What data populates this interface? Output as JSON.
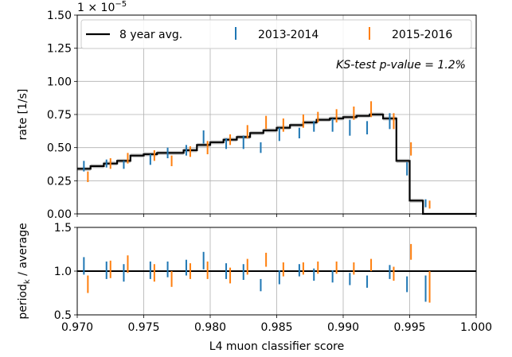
{
  "chart_data": [
    {
      "type": "step",
      "title": "",
      "xlabel": "L4 muon classifier score",
      "ylabel": "rate [1/s]",
      "y_multiplier_label": "1 × 10",
      "y_multiplier_exponent": "−5",
      "xlim": [
        0.97,
        1.0
      ],
      "ylim": [
        0.0,
        1.5
      ],
      "x_ticks": [
        0.97,
        0.975,
        0.98,
        0.985,
        0.99,
        0.995,
        1.0
      ],
      "x_tick_labels": [
        "0.970",
        "0.975",
        "0.980",
        "0.985",
        "0.990",
        "0.995",
        "1.000"
      ],
      "y_ticks": [
        0.0,
        0.25,
        0.5,
        0.75,
        1.0,
        1.25,
        1.5
      ],
      "y_tick_labels": [
        "0.00",
        "0.25",
        "0.50",
        "0.75",
        "1.00",
        "1.25",
        "1.50"
      ],
      "grid": true,
      "legend_position": "top",
      "annotation": "KS-test p-value = 1.2%",
      "bin_edges": [
        0.97,
        0.971,
        0.972,
        0.973,
        0.974,
        0.975,
        0.976,
        0.977,
        0.978,
        0.979,
        0.98,
        0.981,
        0.982,
        0.983,
        0.984,
        0.985,
        0.986,
        0.987,
        0.988,
        0.989,
        0.99,
        0.991,
        0.992,
        0.993,
        0.994,
        0.995,
        0.996,
        0.997,
        1.0
      ],
      "series": [
        {
          "name": "8 year avg.",
          "color": "#000000",
          "style": "step",
          "values": [
            0.34,
            0.36,
            0.38,
            0.4,
            0.44,
            0.45,
            0.46,
            0.46,
            0.48,
            0.52,
            0.54,
            0.56,
            0.58,
            0.61,
            0.63,
            0.65,
            0.67,
            0.69,
            0.71,
            0.72,
            0.73,
            0.74,
            0.75,
            0.72,
            0.4,
            0.1,
            0.0,
            0.0
          ]
        },
        {
          "name": "2013-2014",
          "color": "#1f77b4",
          "style": "errorbar",
          "x": [
            0.9705,
            0.9722,
            0.9735,
            0.9755,
            0.9768,
            0.9782,
            0.9795,
            0.9812,
            0.9825,
            0.9838,
            0.9852,
            0.9867,
            0.9878,
            0.9892,
            0.9905,
            0.9918,
            0.9935,
            0.9948,
            0.9962
          ],
          "y": [
            0.36,
            0.38,
            0.37,
            0.41,
            0.46,
            0.48,
            0.58,
            0.53,
            0.54,
            0.5,
            0.6,
            0.61,
            0.66,
            0.67,
            0.65,
            0.65,
            0.7,
            0.34,
            0.08
          ],
          "err": [
            0.04,
            0.03,
            0.03,
            0.04,
            0.04,
            0.04,
            0.05,
            0.04,
            0.05,
            0.04,
            0.05,
            0.04,
            0.04,
            0.05,
            0.06,
            0.05,
            0.06,
            0.05,
            0.03
          ]
        },
        {
          "name": "2015-2016",
          "color": "#ff7f0e",
          "style": "errorbar",
          "x": [
            0.9708,
            0.9725,
            0.9738,
            0.9758,
            0.9771,
            0.9785,
            0.9798,
            0.9815,
            0.9828,
            0.9842,
            0.9855,
            0.987,
            0.9881,
            0.9895,
            0.9908,
            0.9921,
            0.9938,
            0.9951,
            0.9965
          ],
          "y": [
            0.28,
            0.38,
            0.42,
            0.44,
            0.4,
            0.47,
            0.5,
            0.56,
            0.62,
            0.69,
            0.67,
            0.7,
            0.73,
            0.74,
            0.76,
            0.79,
            0.7,
            0.49,
            0.07
          ],
          "err": [
            0.04,
            0.04,
            0.04,
            0.04,
            0.04,
            0.04,
            0.05,
            0.04,
            0.05,
            0.05,
            0.05,
            0.05,
            0.04,
            0.05,
            0.05,
            0.06,
            0.06,
            0.05,
            0.03
          ]
        }
      ]
    },
    {
      "type": "errorbar",
      "xlabel": "L4 muon classifier score",
      "ylabel_main": "period",
      "ylabel_sub": "k",
      "ylabel_rest": " / average",
      "xlim": [
        0.97,
        1.0
      ],
      "ylim": [
        0.5,
        1.5
      ],
      "y_ticks": [
        0.5,
        1.0,
        1.5
      ],
      "y_tick_labels": [
        "0.5",
        "1.0",
        "1.5"
      ],
      "grid": true,
      "reference_line": 1.0,
      "series": [
        {
          "name": "2013-2014",
          "color": "#1f77b4",
          "x": [
            0.9705,
            0.9722,
            0.9735,
            0.9755,
            0.9768,
            0.9782,
            0.9795,
            0.9812,
            0.9825,
            0.9838,
            0.9852,
            0.9867,
            0.9878,
            0.9892,
            0.9905,
            0.9918,
            0.9935,
            0.9948,
            0.9962
          ],
          "y": [
            1.06,
            1.01,
            0.98,
            1.01,
            1.02,
            1.04,
            1.12,
            1.0,
            0.99,
            0.84,
            0.93,
            1.01,
            0.96,
            0.94,
            0.91,
            0.88,
            0.99,
            0.85,
            0.8
          ],
          "err": [
            0.1,
            0.1,
            0.1,
            0.1,
            0.09,
            0.09,
            0.1,
            0.09,
            0.09,
            0.07,
            0.08,
            0.07,
            0.07,
            0.07,
            0.07,
            0.07,
            0.08,
            0.09,
            0.15
          ]
        },
        {
          "name": "2015-2016",
          "color": "#ff7f0e",
          "x": [
            0.9708,
            0.9725,
            0.9738,
            0.9758,
            0.9771,
            0.9785,
            0.9798,
            0.9815,
            0.9828,
            0.9842,
            0.9855,
            0.987,
            0.9881,
            0.9895,
            0.9908,
            0.9921,
            0.9938,
            0.9951,
            0.9965
          ],
          "y": [
            0.85,
            1.02,
            1.08,
            0.98,
            0.91,
            1.0,
            1.01,
            0.95,
            1.05,
            1.13,
            1.02,
            1.03,
            1.04,
            1.04,
            1.03,
            1.07,
            0.97,
            1.22,
            0.82
          ],
          "err": [
            0.1,
            0.1,
            0.1,
            0.1,
            0.09,
            0.09,
            0.1,
            0.09,
            0.09,
            0.08,
            0.08,
            0.07,
            0.07,
            0.07,
            0.07,
            0.07,
            0.08,
            0.09,
            0.18
          ]
        }
      ]
    }
  ]
}
